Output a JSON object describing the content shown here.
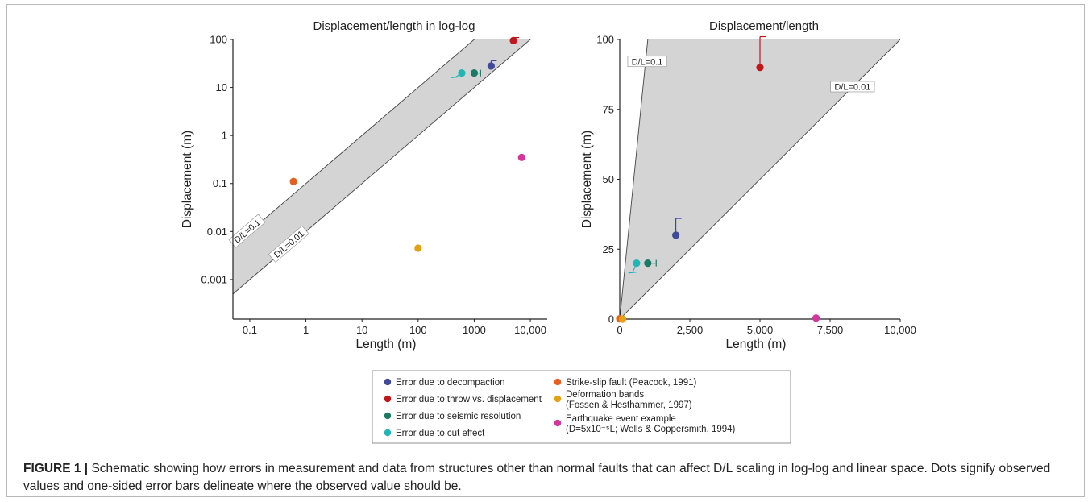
{
  "caption": {
    "label": "FIGURE 1 |",
    "text": " Schematic showing how errors in measurement and data from structures other than normal faults that can affect D/L scaling in log-log and linear space. Dots signify observed values and one-sided error bars delineate where the observed value should be."
  },
  "legend": {
    "items": [
      {
        "name": "decompaction",
        "label": "Error due to decompaction",
        "color": "#3f4a9a"
      },
      {
        "name": "throw",
        "label": "Error due to throw vs. displacement",
        "color": "#c3161c"
      },
      {
        "name": "seismic",
        "label": "Error due to seismic resolution",
        "color": "#1b7a66"
      },
      {
        "name": "cut",
        "label": "Error due to cut effect",
        "color": "#22b5b5"
      },
      {
        "name": "strikeslip",
        "label": "Strike-slip fault (Peacock, 1991)",
        "color": "#e5601e"
      },
      {
        "name": "deformation",
        "label": "Deformation bands",
        "label2": "(Fossen & Hesthammer, 1997)",
        "color": "#e4a116"
      },
      {
        "name": "earthquake",
        "label": "Earthquake event example",
        "label2": "(D=5x10⁻⁵L; Wells & Coppersmith, 1994)",
        "color": "#d3379c"
      }
    ]
  },
  "chart_data": [
    {
      "type": "scatter",
      "title": "Displacement/length in log-log",
      "xlabel": "Length (m)",
      "ylabel": "Displacement (m)",
      "xscale": "log",
      "yscale": "log",
      "xlim": [
        0.05,
        20000
      ],
      "ylim": [
        0.00015,
        100
      ],
      "xticks": [
        0.1,
        1,
        10,
        100,
        1000,
        10000
      ],
      "xtick_labels": [
        "0.1",
        "1",
        "10",
        "100",
        "1000",
        "10,000"
      ],
      "yticks": [
        0.001,
        0.01,
        0.1,
        1,
        10,
        100
      ],
      "ytick_labels": [
        "0.001",
        "0.01",
        "0.1",
        "1",
        "10",
        "100"
      ],
      "grid": false,
      "shaded_band": {
        "lower_ratio": 0.01,
        "upper_ratio": 0.1,
        "color": "#d4d4d4"
      },
      "lines": [
        {
          "label": "D/L=0.1",
          "ratio": 0.1
        },
        {
          "label": "D/L=0.01",
          "ratio": 0.01
        }
      ],
      "points": [
        {
          "series": "decompaction",
          "x": 2000,
          "y": 28,
          "error": {
            "axis": "y",
            "to": 36
          }
        },
        {
          "series": "throw",
          "x": 5000,
          "y": 95,
          "error": {
            "axis": "y",
            "to": 110
          }
        },
        {
          "series": "seismic",
          "x": 1000,
          "y": 20,
          "error": {
            "axis": "x",
            "to": 1300
          }
        },
        {
          "series": "cut",
          "x": 600,
          "y": 20,
          "error": {
            "axis": "diag",
            "to_x": 450,
            "to_y": 16
          }
        },
        {
          "series": "strikeslip",
          "x": 0.6,
          "y": 0.11
        },
        {
          "series": "deformation",
          "x": 100,
          "y": 0.0045
        },
        {
          "series": "earthquake",
          "x": 7000,
          "y": 0.35
        }
      ]
    },
    {
      "type": "scatter",
      "title": "Displacement/length",
      "xlabel": "Length (m)",
      "ylabel": "Displacement (m)",
      "xscale": "linear",
      "yscale": "linear",
      "xlim": [
        0,
        10000
      ],
      "ylim": [
        0,
        100
      ],
      "xticks": [
        0,
        2500,
        5000,
        7500,
        10000
      ],
      "xtick_labels": [
        "0",
        "2,500",
        "5,000",
        "7,500",
        "10,000"
      ],
      "yticks": [
        0,
        25,
        50,
        75,
        100
      ],
      "ytick_labels": [
        "0",
        "25",
        "50",
        "75",
        "100"
      ],
      "grid": false,
      "shaded_band": {
        "lower_ratio": 0.01,
        "upper_ratio": 0.1,
        "color": "#d4d4d4"
      },
      "lines": [
        {
          "label": "D/L=0.1",
          "ratio": 0.1
        },
        {
          "label": "D/L=0.01",
          "ratio": 0.01
        }
      ],
      "points": [
        {
          "series": "decompaction",
          "x": 2000,
          "y": 30,
          "error": {
            "axis": "y",
            "to": 36
          }
        },
        {
          "series": "throw",
          "x": 5000,
          "y": 90,
          "error": {
            "axis": "y",
            "to": 101
          }
        },
        {
          "series": "seismic",
          "x": 1000,
          "y": 20,
          "error": {
            "axis": "x",
            "to": 1300
          }
        },
        {
          "series": "cut",
          "x": 600,
          "y": 20,
          "error": {
            "axis": "diag",
            "to_x": 450,
            "to_y": 16.5
          }
        },
        {
          "series": "strikeslip",
          "x": 0.6,
          "y": 0.11
        },
        {
          "series": "deformation",
          "x": 100,
          "y": 0.0045
        },
        {
          "series": "earthquake",
          "x": 7000,
          "y": 0.35
        }
      ]
    }
  ]
}
